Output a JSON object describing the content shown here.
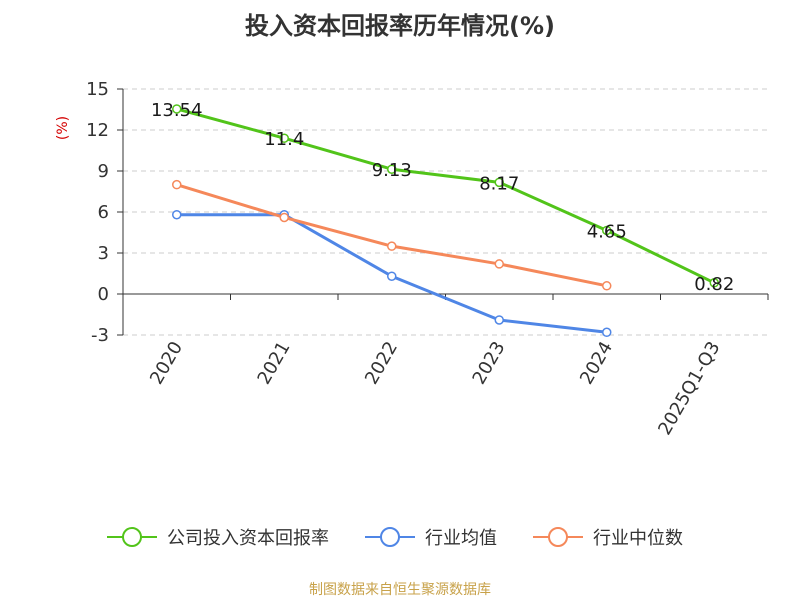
{
  "chart_data": {
    "type": "line",
    "title": "投入资本回报率历年情况(%)",
    "unit_label": "(%)",
    "categories": [
      "2020",
      "2021",
      "2022",
      "2023",
      "2024",
      "2025Q1-Q3"
    ],
    "ylim": [
      -3,
      15
    ],
    "yticks": [
      15,
      12,
      9,
      6,
      3,
      0,
      -3
    ],
    "grid": true,
    "legend_position": "bottom",
    "series": [
      {
        "name": "公司投入资本回报率",
        "color": "#52c41a",
        "values": [
          13.54,
          11.4,
          9.13,
          8.17,
          4.65,
          0.82
        ],
        "data_labels": [
          "13.54",
          "11.4",
          "9.13",
          "8.17",
          "4.65",
          "0.82"
        ]
      },
      {
        "name": "行业均值",
        "color": "#4f86e6",
        "values": [
          5.8,
          5.8,
          1.3,
          -1.9,
          -2.8,
          null
        ]
      },
      {
        "name": "行业中位数",
        "color": "#f5885a",
        "values": [
          8.0,
          5.6,
          3.5,
          2.2,
          0.6,
          null
        ]
      }
    ]
  },
  "source_text": "制图数据来自恒生聚源数据库",
  "colors": {
    "axis": "#333333",
    "grid": "#cccccc",
    "unit": "#d40000",
    "source": "#c8a24a"
  }
}
